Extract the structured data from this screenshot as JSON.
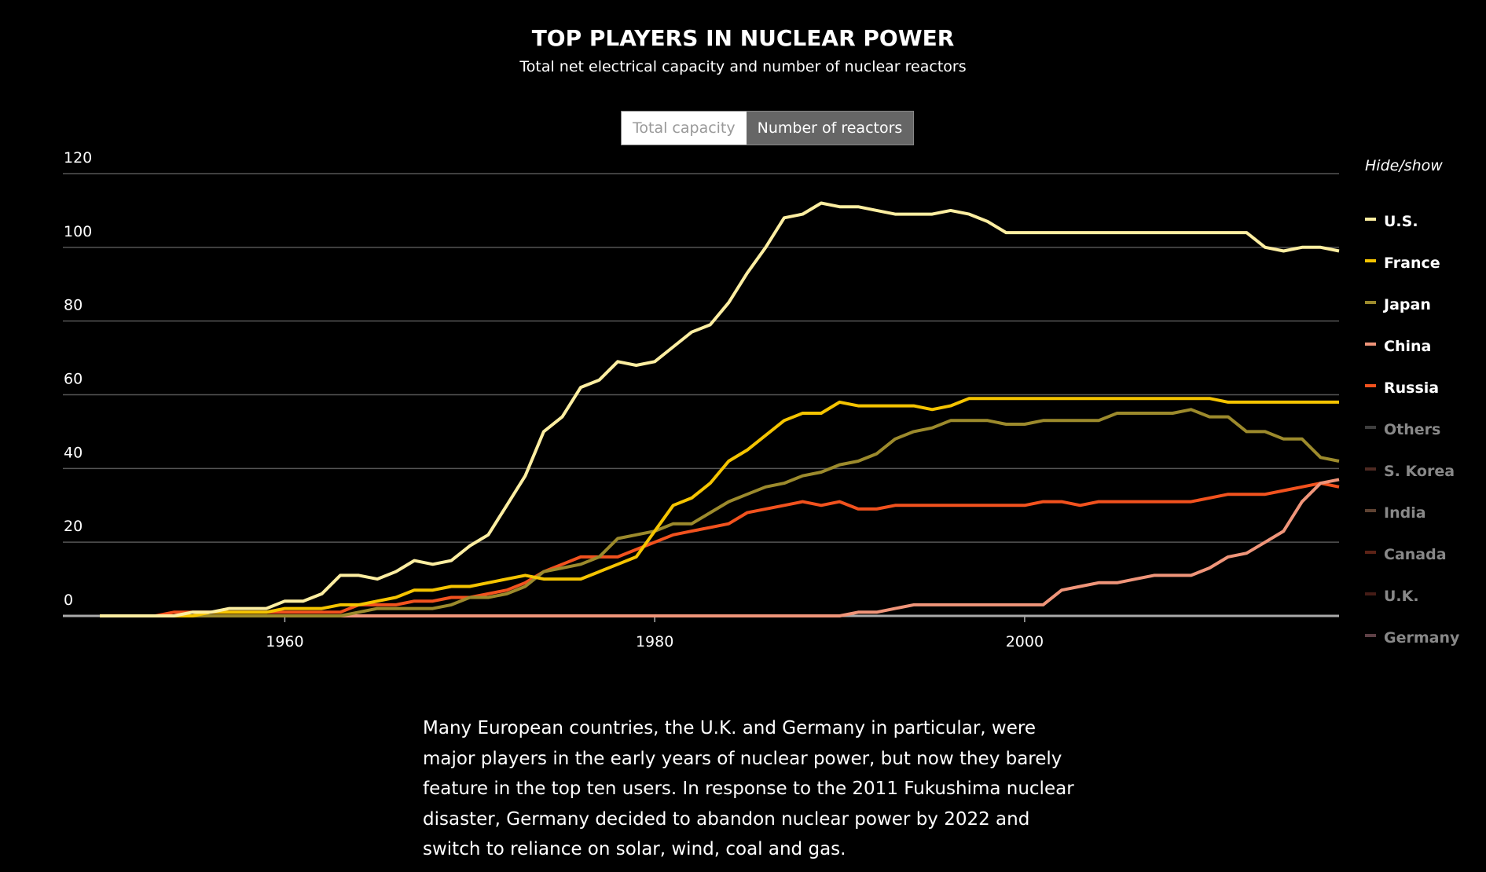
{
  "chart_data": {
    "type": "line",
    "title": "TOP PLAYERS IN NUCLEAR POWER",
    "subtitle": "Total net electrical capacity and number of nuclear reactors",
    "toggle": {
      "options": [
        "Total capacity",
        "Number of reactors"
      ],
      "active": 1
    },
    "legend_title": "Hide/show",
    "description": "Many European countries, the U.K. and Germany in particular, were major players in the early years of nuclear power, but now they barely feature in the top ten users. In response to the 2011 Fukushima nuclear disaster, Germany decided to abandon nuclear power by 2022 and switch to reliance on solar, wind, coal and gas.",
    "x": [
      1950,
      1951,
      1952,
      1953,
      1954,
      1955,
      1956,
      1957,
      1958,
      1959,
      1960,
      1961,
      1962,
      1963,
      1964,
      1965,
      1966,
      1967,
      1968,
      1969,
      1970,
      1971,
      1972,
      1973,
      1974,
      1975,
      1976,
      1977,
      1978,
      1979,
      1980,
      1981,
      1982,
      1983,
      1984,
      1985,
      1986,
      1987,
      1988,
      1989,
      1990,
      1991,
      1992,
      1993,
      1994,
      1995,
      1996,
      1997,
      1998,
      1999,
      2000,
      2001,
      2002,
      2003,
      2004,
      2005,
      2006,
      2007,
      2008,
      2009,
      2010,
      2011,
      2012,
      2013,
      2014,
      2015,
      2016,
      2017
    ],
    "xlim": [
      1948,
      2017
    ],
    "xticks": [
      1960,
      1980,
      2000
    ],
    "ylim": [
      0,
      120
    ],
    "yticks": [
      0,
      20,
      40,
      60,
      80,
      100,
      120
    ],
    "grid": true,
    "series": [
      {
        "name": "U.S.",
        "color": "#fdeea1",
        "visible": true,
        "values": [
          0,
          0,
          0,
          0,
          0,
          1,
          1,
          2,
          2,
          2,
          4,
          4,
          6,
          11,
          11,
          10,
          12,
          15,
          14,
          15,
          19,
          22,
          30,
          38,
          50,
          54,
          62,
          64,
          69,
          68,
          69,
          73,
          77,
          79,
          85,
          93,
          100,
          108,
          109,
          112,
          111,
          111,
          110,
          109,
          109,
          109,
          110,
          109,
          107,
          104,
          104,
          104,
          104,
          104,
          104,
          104,
          104,
          104,
          104,
          104,
          104,
          104,
          104,
          100,
          99,
          100,
          100,
          99
        ]
      },
      {
        "name": "France",
        "color": "#f5c400",
        "visible": true,
        "values": [
          0,
          0,
          0,
          0,
          0,
          0,
          1,
          1,
          1,
          1,
          2,
          2,
          2,
          3,
          3,
          4,
          5,
          7,
          7,
          8,
          8,
          9,
          10,
          11,
          10,
          10,
          10,
          12,
          14,
          16,
          23,
          30,
          32,
          36,
          42,
          45,
          49,
          53,
          55,
          55,
          58,
          57,
          57,
          57,
          57,
          56,
          57,
          59,
          59,
          59,
          59,
          59,
          59,
          59,
          59,
          59,
          59,
          59,
          59,
          59,
          59,
          58,
          58,
          58,
          58,
          58,
          58,
          58
        ]
      },
      {
        "name": "Japan",
        "color": "#9c8a2c",
        "visible": true,
        "values": [
          0,
          0,
          0,
          0,
          0,
          0,
          0,
          0,
          0,
          0,
          0,
          0,
          0,
          0,
          1,
          2,
          2,
          2,
          2,
          3,
          5,
          5,
          6,
          8,
          12,
          13,
          14,
          16,
          21,
          22,
          23,
          25,
          25,
          28,
          31,
          33,
          35,
          36,
          38,
          39,
          41,
          42,
          44,
          48,
          50,
          51,
          53,
          53,
          53,
          52,
          52,
          53,
          53,
          53,
          53,
          55,
          55,
          55,
          55,
          56,
          54,
          54,
          50,
          50,
          48,
          48,
          43,
          42
        ]
      },
      {
        "name": "China",
        "color": "#f0957a",
        "visible": true,
        "values": [
          0,
          0,
          0,
          0,
          0,
          0,
          0,
          0,
          0,
          0,
          0,
          0,
          0,
          0,
          0,
          0,
          0,
          0,
          0,
          0,
          0,
          0,
          0,
          0,
          0,
          0,
          0,
          0,
          0,
          0,
          0,
          0,
          0,
          0,
          0,
          0,
          0,
          0,
          0,
          0,
          0,
          1,
          1,
          2,
          3,
          3,
          3,
          3,
          3,
          3,
          3,
          3,
          7,
          8,
          9,
          9,
          10,
          11,
          11,
          11,
          13,
          16,
          17,
          20,
          23,
          31,
          36,
          37
        ]
      },
      {
        "name": "Russia",
        "color": "#f2521e",
        "visible": true,
        "values": [
          0,
          0,
          0,
          0,
          1,
          1,
          1,
          1,
          1,
          1,
          1,
          1,
          1,
          1,
          3,
          3,
          3,
          4,
          4,
          5,
          5,
          6,
          7,
          9,
          12,
          14,
          16,
          16,
          16,
          18,
          20,
          22,
          23,
          24,
          25,
          28,
          29,
          30,
          31,
          30,
          31,
          29,
          29,
          30,
          30,
          30,
          30,
          30,
          30,
          30,
          30,
          31,
          31,
          30,
          31,
          31,
          31,
          31,
          31,
          31,
          32,
          33,
          33,
          33,
          34,
          35,
          36,
          35
        ]
      },
      {
        "name": "Others",
        "color": "#3e3e3e",
        "visible": false
      },
      {
        "name": "S. Korea",
        "color": "#4e2a22",
        "visible": false
      },
      {
        "name": "India",
        "color": "#5e4232",
        "visible": false
      },
      {
        "name": "Canada",
        "color": "#5c2216",
        "visible": false
      },
      {
        "name": "U.K.",
        "color": "#451c16",
        "visible": false
      },
      {
        "name": "Germany",
        "color": "#5e4046",
        "visible": false
      }
    ]
  }
}
